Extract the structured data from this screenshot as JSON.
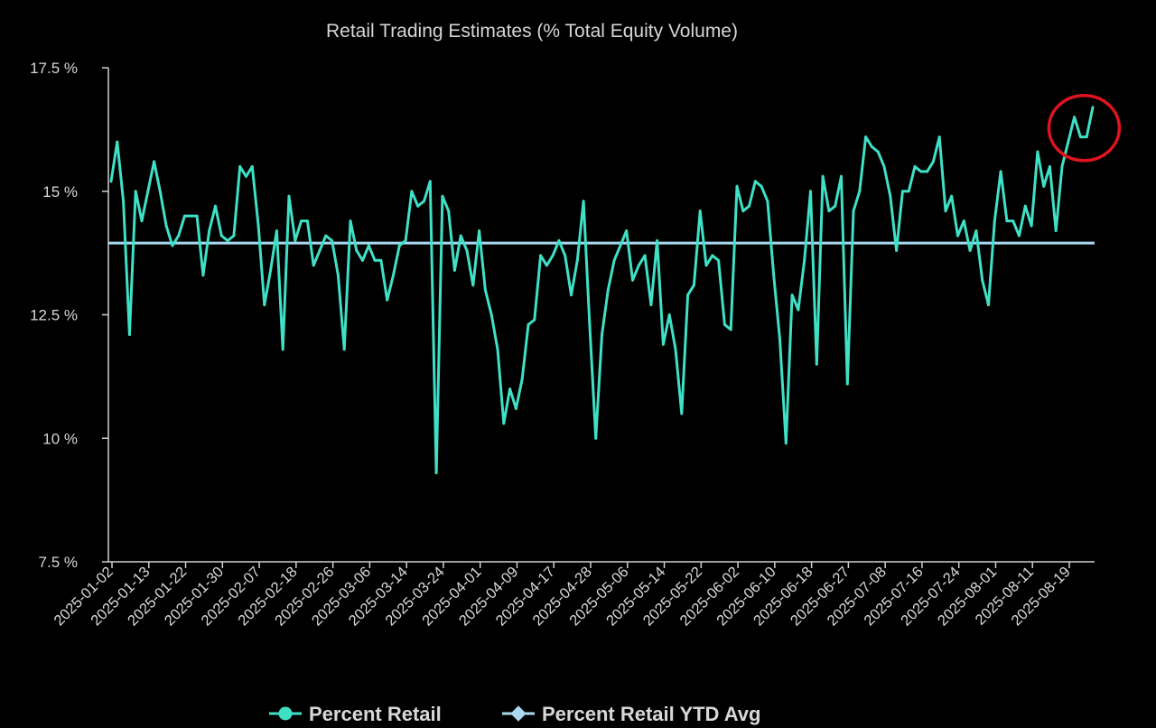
{
  "chart_data": {
    "type": "line",
    "title": "Retail Trading Estimates (% Total Equity Volume)",
    "xlabel": "",
    "ylabel": "",
    "ylim": [
      7.5,
      17.5
    ],
    "y_ticks": [
      7.5,
      10,
      12.5,
      15,
      17.5
    ],
    "y_tick_labels": [
      "7.5 %",
      "10 %",
      "12.5 %",
      "15 %",
      "17.5 %"
    ],
    "x_tick_labels": [
      "2025-01-02",
      "2025-01-13",
      "2025-01-22",
      "2025-01-30",
      "2025-02-07",
      "2025-02-18",
      "2025-02-26",
      "2025-03-06",
      "2025-03-14",
      "2025-03-24",
      "2025-04-01",
      "2025-04-09",
      "2025-04-17",
      "2025-04-28",
      "2025-05-06",
      "2025-05-14",
      "2025-05-22",
      "2025-06-02",
      "2025-06-10",
      "2025-06-18",
      "2025-06-27",
      "2025-07-08",
      "2025-07-16",
      "2025-07-24",
      "2025-08-01",
      "2025-08-11",
      "2025-08-19"
    ],
    "grid": false,
    "legend_position": "bottom",
    "colors": {
      "percent_retail": "#3fe0c5",
      "ytd_avg": "#a9d8ef",
      "highlight": "#e0141e"
    },
    "series": [
      {
        "name": "Percent Retail",
        "values": [
          15.2,
          16.0,
          14.8,
          12.1,
          15.0,
          14.4,
          15.0,
          15.6,
          15.0,
          14.3,
          13.9,
          14.1,
          14.5,
          14.5,
          14.5,
          13.3,
          14.2,
          14.7,
          14.1,
          14.0,
          14.1,
          15.5,
          15.3,
          15.5,
          14.3,
          12.7,
          13.4,
          14.2,
          11.8,
          14.9,
          14.0,
          14.4,
          14.4,
          13.5,
          13.8,
          14.1,
          14.0,
          13.3,
          11.8,
          14.4,
          13.8,
          13.6,
          13.9,
          13.6,
          13.6,
          12.8,
          13.3,
          13.9,
          14.0,
          15.0,
          14.7,
          14.8,
          15.2,
          9.3,
          14.9,
          14.6,
          13.4,
          14.1,
          13.8,
          13.1,
          14.2,
          13.0,
          12.5,
          11.8,
          10.3,
          11.0,
          10.6,
          11.2,
          12.3,
          12.4,
          13.7,
          13.5,
          13.7,
          14.0,
          13.7,
          12.9,
          13.6,
          14.8,
          12.3,
          10.0,
          12.1,
          13.0,
          13.6,
          13.9,
          14.2,
          13.2,
          13.5,
          13.7,
          12.7,
          14.0,
          11.9,
          12.5,
          11.8,
          10.5,
          12.9,
          13.1,
          14.6,
          13.5,
          13.7,
          13.6,
          12.3,
          12.2,
          15.1,
          14.6,
          14.7,
          15.2,
          15.1,
          14.8,
          13.3,
          12.0,
          9.9,
          12.9,
          12.6,
          13.6,
          15.0,
          11.5,
          15.3,
          14.6,
          14.7,
          15.3,
          11.1,
          14.6,
          15.0,
          16.1,
          15.9,
          15.8,
          15.5,
          14.9,
          13.8,
          15.0,
          15.0,
          15.5,
          15.4,
          15.4,
          15.6,
          16.1,
          14.6,
          14.9,
          14.1,
          14.4,
          13.8,
          14.2,
          13.2,
          12.7,
          14.4,
          15.4,
          14.4,
          14.4,
          14.1,
          14.7,
          14.3,
          15.8,
          15.1,
          15.5,
          14.2,
          15.5,
          16.0,
          16.5,
          16.1,
          16.1,
          16.7
        ]
      },
      {
        "name": "Percent Retail YTD Avg",
        "value": 13.95
      }
    ],
    "annotations": [
      {
        "type": "circle",
        "target": "latest values",
        "color": "#e0141e"
      }
    ]
  }
}
